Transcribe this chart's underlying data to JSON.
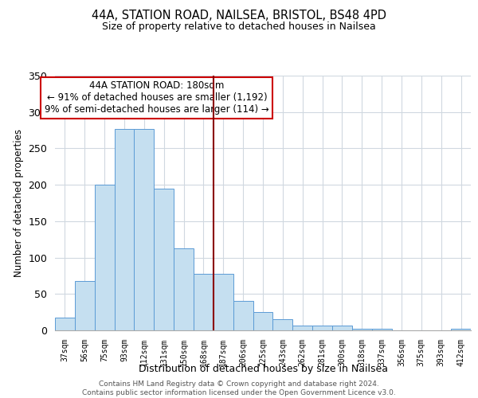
{
  "title1": "44A, STATION ROAD, NAILSEA, BRISTOL, BS48 4PD",
  "title2": "Size of property relative to detached houses in Nailsea",
  "xlabel": "Distribution of detached houses by size in Nailsea",
  "ylabel": "Number of detached properties",
  "bar_labels": [
    "37sqm",
    "56sqm",
    "75sqm",
    "93sqm",
    "112sqm",
    "131sqm",
    "150sqm",
    "168sqm",
    "187sqm",
    "206sqm",
    "225sqm",
    "243sqm",
    "262sqm",
    "281sqm",
    "300sqm",
    "318sqm",
    "337sqm",
    "356sqm",
    "375sqm",
    "393sqm",
    "412sqm"
  ],
  "bar_values": [
    18,
    68,
    200,
    277,
    277,
    195,
    113,
    78,
    78,
    40,
    25,
    15,
    7,
    7,
    7,
    2,
    2,
    0,
    0,
    0,
    2
  ],
  "bar_color": "#c5dff0",
  "bar_edge_color": "#5b9bd5",
  "vline_color": "#8b0000",
  "annotation_title": "44A STATION ROAD: 180sqm",
  "annotation_line1": "← 91% of detached houses are smaller (1,192)",
  "annotation_line2": "9% of semi-detached houses are larger (114) →",
  "annotation_box_color": "white",
  "annotation_box_edge": "#cc0000",
  "ylim": [
    0,
    350
  ],
  "yticks": [
    0,
    50,
    100,
    150,
    200,
    250,
    300,
    350
  ],
  "footer1": "Contains HM Land Registry data © Crown copyright and database right 2024.",
  "footer2": "Contains public sector information licensed under the Open Government Licence v3.0.",
  "bg_color": "white",
  "grid_color": "#d0d8e0"
}
